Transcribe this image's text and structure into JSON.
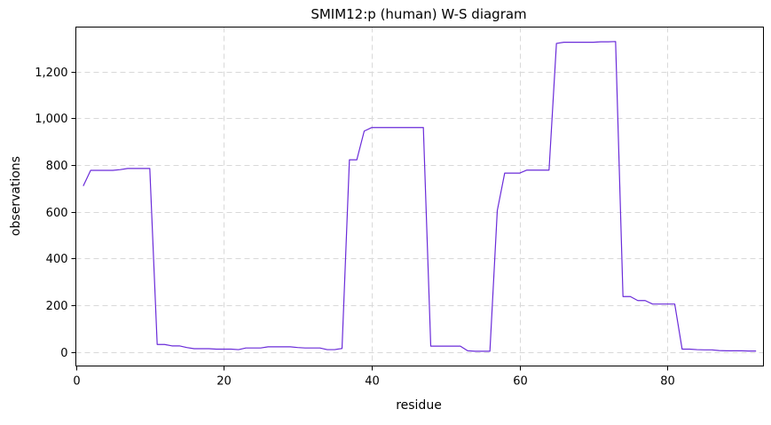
{
  "chart_data": {
    "type": "line",
    "title": "SMIM12:p (human) W-S diagram",
    "xlabel": "residue",
    "ylabel": "observations",
    "xlim": [
      0,
      93
    ],
    "ylim": [
      -60,
      1390
    ],
    "xticks": [
      0,
      20,
      40,
      60,
      80
    ],
    "yticks": [
      0,
      200,
      400,
      600,
      800,
      1000,
      1200
    ],
    "xtick_labels": [
      "0",
      "20",
      "40",
      "60",
      "80"
    ],
    "ytick_labels": [
      "0",
      "200",
      "400",
      "600",
      "800",
      "1,000",
      "1,200"
    ],
    "grid": true,
    "legend": false,
    "series": [
      {
        "color": "#6a2bd9",
        "x": [
          1,
          2,
          3,
          4,
          5,
          6,
          7,
          8,
          9,
          10,
          11,
          12,
          13,
          14,
          15,
          16,
          17,
          18,
          19,
          20,
          21,
          22,
          23,
          24,
          25,
          26,
          27,
          28,
          29,
          30,
          31,
          32,
          33,
          34,
          35,
          36,
          37,
          38,
          39,
          40,
          41,
          42,
          43,
          44,
          45,
          46,
          47,
          48,
          49,
          50,
          51,
          52,
          53,
          54,
          55,
          56,
          57,
          58,
          59,
          60,
          61,
          62,
          63,
          64,
          65,
          66,
          67,
          68,
          69,
          70,
          71,
          72,
          73,
          74,
          75,
          76,
          77,
          78,
          79,
          80,
          81,
          82,
          83,
          84,
          85,
          86,
          87,
          88,
          89,
          90,
          91,
          92
        ],
        "y": [
          710,
          777,
          777,
          777,
          777,
          780,
          785,
          785,
          785,
          785,
          32,
          32,
          26,
          26,
          19,
          14,
          14,
          14,
          12,
          12,
          12,
          10,
          17,
          17,
          17,
          22,
          22,
          22,
          22,
          19,
          17,
          17,
          17,
          10,
          10,
          15,
          822,
          822,
          945,
          960,
          960,
          960,
          960,
          960,
          960,
          960,
          960,
          25,
          25,
          25,
          25,
          25,
          5,
          3,
          3,
          3,
          605,
          765,
          765,
          765,
          778,
          778,
          778,
          778,
          1320,
          1325,
          1325,
          1325,
          1325,
          1325,
          1327,
          1327,
          1328,
          237,
          237,
          220,
          220,
          205,
          205,
          205,
          205,
          12,
          12,
          10,
          9,
          9,
          6,
          5,
          5,
          5,
          4,
          4
        ]
      }
    ]
  }
}
